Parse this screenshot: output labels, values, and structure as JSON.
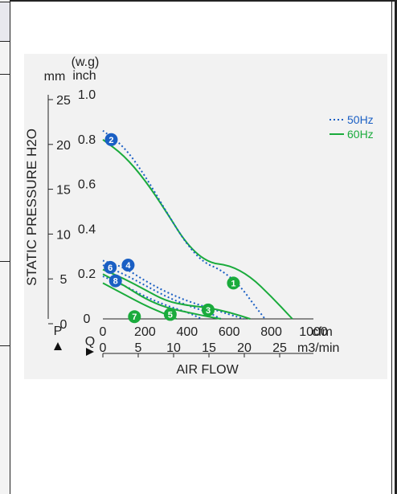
{
  "chart_data": {
    "type": "line",
    "ylabel": "STATIC PRESSURE H2O",
    "xlabel": "AIR FLOW",
    "units": {
      "y_mm": "mm",
      "y_inch_top": "(w.g)",
      "y_inch": "inch",
      "x_cfm": "cfm",
      "x_m3": "m3/min"
    },
    "axis_markers": {
      "p": "P",
      "q": "Q"
    },
    "y_inch_ticks": [
      "1.0",
      "0.8",
      "0.6",
      "0.4",
      "0.2",
      "0"
    ],
    "y_mm_ticks": [
      "25",
      "20",
      "15",
      "10",
      "5",
      "0"
    ],
    "x_cfm_ticks": [
      "0",
      "200",
      "400",
      "600",
      "800",
      "1000"
    ],
    "x_m3_ticks": [
      "0",
      "5",
      "10",
      "15",
      "20",
      "25"
    ],
    "xlim_cfm": [
      0,
      1000
    ],
    "ylim_inch": [
      0,
      1.0
    ],
    "legend": [
      {
        "label": "50Hz",
        "color": "#1a5fc4",
        "style": "dotted"
      },
      {
        "label": "60Hz",
        "color": "#1aab3c",
        "style": "solid"
      }
    ],
    "series": [
      {
        "id": "1",
        "freq": "60Hz",
        "points": [
          [
            0,
            0.8
          ],
          [
            100,
            0.73
          ],
          [
            200,
            0.62
          ],
          [
            300,
            0.48
          ],
          [
            400,
            0.33
          ],
          [
            500,
            0.25
          ],
          [
            600,
            0.24
          ],
          [
            700,
            0.19
          ],
          [
            800,
            0.1
          ],
          [
            900,
            0.0
          ]
        ]
      },
      {
        "id": "2",
        "freq": "50Hz",
        "points": [
          [
            0,
            0.84
          ],
          [
            100,
            0.77
          ],
          [
            200,
            0.64
          ],
          [
            300,
            0.48
          ],
          [
            400,
            0.33
          ],
          [
            480,
            0.25
          ],
          [
            560,
            0.22
          ],
          [
            650,
            0.15
          ],
          [
            720,
            0.06
          ],
          [
            770,
            0.0
          ]
        ]
      },
      {
        "id": "4",
        "freq": "50Hz",
        "points": [
          [
            0,
            0.26
          ],
          [
            100,
            0.23
          ],
          [
            200,
            0.17
          ],
          [
            300,
            0.12
          ],
          [
            400,
            0.08
          ],
          [
            500,
            0.05
          ],
          [
            600,
            0.02
          ],
          [
            670,
            0.0
          ]
        ]
      },
      {
        "id": "6",
        "freq": "50Hz",
        "points": [
          [
            0,
            0.24
          ],
          [
            100,
            0.2
          ],
          [
            200,
            0.15
          ],
          [
            300,
            0.1
          ],
          [
            400,
            0.06
          ],
          [
            500,
            0.03
          ],
          [
            560,
            0.0
          ]
        ]
      },
      {
        "id": "8",
        "freq": "50Hz",
        "points": [
          [
            0,
            0.19
          ],
          [
            100,
            0.15
          ],
          [
            200,
            0.1
          ],
          [
            300,
            0.06
          ],
          [
            400,
            0.03
          ],
          [
            470,
            0.0
          ]
        ]
      },
      {
        "id": "3",
        "freq": "60Hz",
        "points": [
          [
            0,
            0.22
          ],
          [
            100,
            0.18
          ],
          [
            200,
            0.13
          ],
          [
            300,
            0.08
          ],
          [
            400,
            0.06
          ],
          [
            500,
            0.05
          ],
          [
            600,
            0.03
          ],
          [
            700,
            0.0
          ]
        ]
      },
      {
        "id": "5",
        "freq": "60Hz",
        "points": [
          [
            0,
            0.2
          ],
          [
            100,
            0.15
          ],
          [
            200,
            0.09
          ],
          [
            300,
            0.05
          ],
          [
            400,
            0.03
          ],
          [
            500,
            0.01
          ],
          [
            560,
            0.0
          ]
        ]
      },
      {
        "id": "7",
        "freq": "60Hz",
        "points": [
          [
            0,
            0.16
          ],
          [
            100,
            0.11
          ],
          [
            200,
            0.06
          ],
          [
            300,
            0.02
          ],
          [
            350,
            0.0
          ]
        ]
      }
    ],
    "markers": [
      {
        "id": "1",
        "color": "#1aab3c",
        "x": 620,
        "y": 0.16
      },
      {
        "id": "2",
        "color": "#1a5fc4",
        "x": 40,
        "y": 0.8
      },
      {
        "id": "3",
        "color": "#1aab3c",
        "x": 500,
        "y": 0.04
      },
      {
        "id": "4",
        "color": "#1a5fc4",
        "x": 120,
        "y": 0.24
      },
      {
        "id": "5",
        "color": "#1aab3c",
        "x": 320,
        "y": 0.02
      },
      {
        "id": "6",
        "color": "#1a5fc4",
        "x": 35,
        "y": 0.23
      },
      {
        "id": "7",
        "color": "#1aab3c",
        "x": 150,
        "y": 0.01
      },
      {
        "id": "8",
        "color": "#1a5fc4",
        "x": 60,
        "y": 0.17
      }
    ],
    "grid": false
  }
}
